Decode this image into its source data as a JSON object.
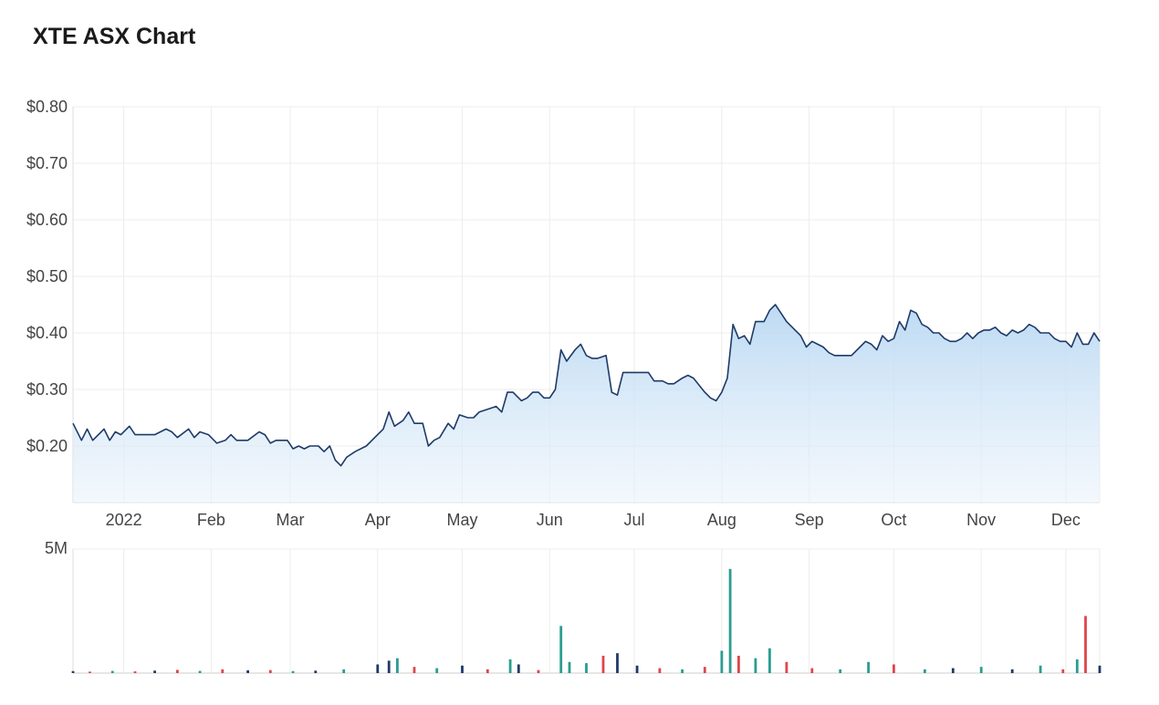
{
  "page": {
    "title": "XTE ASX Chart"
  },
  "chart_data": {
    "type": "area",
    "title": "XTE ASX Chart",
    "ylim": [
      0.1,
      0.8
    ],
    "y_ticks": [
      "$0.80",
      "$0.70",
      "$0.60",
      "$0.50",
      "$0.40",
      "$0.30",
      "$0.20"
    ],
    "y_tick_values": [
      0.8,
      0.7,
      0.6,
      0.5,
      0.4,
      0.3,
      0.2
    ],
    "x_ticks": [
      "2022",
      "Feb",
      "Mar",
      "Apr",
      "May",
      "Jun",
      "Jul",
      "Aug",
      "Sep",
      "Oct",
      "Nov",
      "Dec"
    ],
    "x_tick_dates": [
      "2022-01-01",
      "2022-02-01",
      "2022-03-01",
      "2022-04-01",
      "2022-05-01",
      "2022-06-01",
      "2022-07-01",
      "2022-08-01",
      "2022-09-01",
      "2022-10-01",
      "2022-11-01",
      "2022-12-01"
    ],
    "x_range": [
      "2021-12-14",
      "2022-12-13"
    ],
    "grid": true,
    "line_color": "#1f3a68",
    "fill_color": "#b9d8f2",
    "price": [
      [
        "2021-12-14",
        0.24
      ],
      [
        "2021-12-17",
        0.21
      ],
      [
        "2021-12-19",
        0.23
      ],
      [
        "2021-12-21",
        0.21
      ],
      [
        "2021-12-25",
        0.23
      ],
      [
        "2021-12-27",
        0.21
      ],
      [
        "2021-12-29",
        0.225
      ],
      [
        "2021-12-31",
        0.22
      ],
      [
        "2022-01-03",
        0.235
      ],
      [
        "2022-01-05",
        0.22
      ],
      [
        "2022-01-08",
        0.22
      ],
      [
        "2022-01-12",
        0.22
      ],
      [
        "2022-01-16",
        0.23
      ],
      [
        "2022-01-18",
        0.225
      ],
      [
        "2022-01-20",
        0.215
      ],
      [
        "2022-01-24",
        0.23
      ],
      [
        "2022-01-26",
        0.215
      ],
      [
        "2022-01-28",
        0.225
      ],
      [
        "2022-01-31",
        0.22
      ],
      [
        "2022-02-03",
        0.205
      ],
      [
        "2022-02-06",
        0.21
      ],
      [
        "2022-02-08",
        0.22
      ],
      [
        "2022-02-10",
        0.21
      ],
      [
        "2022-02-14",
        0.21
      ],
      [
        "2022-02-18",
        0.225
      ],
      [
        "2022-02-20",
        0.22
      ],
      [
        "2022-02-22",
        0.205
      ],
      [
        "2022-02-24",
        0.21
      ],
      [
        "2022-02-28",
        0.21
      ],
      [
        "2022-03-02",
        0.195
      ],
      [
        "2022-03-04",
        0.2
      ],
      [
        "2022-03-06",
        0.195
      ],
      [
        "2022-03-08",
        0.2
      ],
      [
        "2022-03-11",
        0.2
      ],
      [
        "2022-03-13",
        0.19
      ],
      [
        "2022-03-15",
        0.2
      ],
      [
        "2022-03-17",
        0.175
      ],
      [
        "2022-03-19",
        0.165
      ],
      [
        "2022-03-21",
        0.18
      ],
      [
        "2022-03-24",
        0.19
      ],
      [
        "2022-03-28",
        0.2
      ],
      [
        "2022-04-01",
        0.22
      ],
      [
        "2022-04-03",
        0.23
      ],
      [
        "2022-04-05",
        0.26
      ],
      [
        "2022-04-07",
        0.235
      ],
      [
        "2022-04-10",
        0.245
      ],
      [
        "2022-04-12",
        0.26
      ],
      [
        "2022-04-14",
        0.24
      ],
      [
        "2022-04-17",
        0.24
      ],
      [
        "2022-04-19",
        0.2
      ],
      [
        "2022-04-21",
        0.21
      ],
      [
        "2022-04-23",
        0.215
      ],
      [
        "2022-04-26",
        0.24
      ],
      [
        "2022-04-28",
        0.23
      ],
      [
        "2022-04-30",
        0.255
      ],
      [
        "2022-05-03",
        0.25
      ],
      [
        "2022-05-05",
        0.25
      ],
      [
        "2022-05-07",
        0.26
      ],
      [
        "2022-05-10",
        0.265
      ],
      [
        "2022-05-13",
        0.27
      ],
      [
        "2022-05-15",
        0.26
      ],
      [
        "2022-05-17",
        0.295
      ],
      [
        "2022-05-19",
        0.295
      ],
      [
        "2022-05-22",
        0.28
      ],
      [
        "2022-05-24",
        0.285
      ],
      [
        "2022-05-26",
        0.295
      ],
      [
        "2022-05-28",
        0.295
      ],
      [
        "2022-05-30",
        0.285
      ],
      [
        "2022-06-01",
        0.285
      ],
      [
        "2022-06-03",
        0.3
      ],
      [
        "2022-06-05",
        0.37
      ],
      [
        "2022-06-07",
        0.35
      ],
      [
        "2022-06-10",
        0.37
      ],
      [
        "2022-06-12",
        0.38
      ],
      [
        "2022-06-14",
        0.36
      ],
      [
        "2022-06-16",
        0.355
      ],
      [
        "2022-06-18",
        0.355
      ],
      [
        "2022-06-21",
        0.36
      ],
      [
        "2022-06-23",
        0.295
      ],
      [
        "2022-06-25",
        0.29
      ],
      [
        "2022-06-27",
        0.33
      ],
      [
        "2022-06-29",
        0.33
      ],
      [
        "2022-07-01",
        0.33
      ],
      [
        "2022-07-04",
        0.33
      ],
      [
        "2022-07-06",
        0.33
      ],
      [
        "2022-07-08",
        0.315
      ],
      [
        "2022-07-11",
        0.315
      ],
      [
        "2022-07-13",
        0.31
      ],
      [
        "2022-07-15",
        0.31
      ],
      [
        "2022-07-18",
        0.32
      ],
      [
        "2022-07-20",
        0.325
      ],
      [
        "2022-07-22",
        0.32
      ],
      [
        "2022-07-26",
        0.295
      ],
      [
        "2022-07-28",
        0.285
      ],
      [
        "2022-07-30",
        0.28
      ],
      [
        "2022-08-01",
        0.295
      ],
      [
        "2022-08-03",
        0.32
      ],
      [
        "2022-08-05",
        0.415
      ],
      [
        "2022-08-07",
        0.39
      ],
      [
        "2022-08-09",
        0.395
      ],
      [
        "2022-08-11",
        0.38
      ],
      [
        "2022-08-13",
        0.42
      ],
      [
        "2022-08-16",
        0.42
      ],
      [
        "2022-08-18",
        0.44
      ],
      [
        "2022-08-20",
        0.45
      ],
      [
        "2022-08-22",
        0.435
      ],
      [
        "2022-08-24",
        0.42
      ],
      [
        "2022-08-26",
        0.41
      ],
      [
        "2022-08-29",
        0.395
      ],
      [
        "2022-08-31",
        0.375
      ],
      [
        "2022-09-02",
        0.385
      ],
      [
        "2022-09-04",
        0.38
      ],
      [
        "2022-09-06",
        0.375
      ],
      [
        "2022-09-08",
        0.365
      ],
      [
        "2022-09-10",
        0.36
      ],
      [
        "2022-09-13",
        0.36
      ],
      [
        "2022-09-16",
        0.36
      ],
      [
        "2022-09-19",
        0.375
      ],
      [
        "2022-09-21",
        0.385
      ],
      [
        "2022-09-23",
        0.38
      ],
      [
        "2022-09-25",
        0.37
      ],
      [
        "2022-09-27",
        0.395
      ],
      [
        "2022-09-29",
        0.385
      ],
      [
        "2022-10-01",
        0.39
      ],
      [
        "2022-10-03",
        0.42
      ],
      [
        "2022-10-05",
        0.405
      ],
      [
        "2022-10-07",
        0.44
      ],
      [
        "2022-10-09",
        0.435
      ],
      [
        "2022-10-11",
        0.415
      ],
      [
        "2022-10-13",
        0.41
      ],
      [
        "2022-10-15",
        0.4
      ],
      [
        "2022-10-17",
        0.4
      ],
      [
        "2022-10-19",
        0.39
      ],
      [
        "2022-10-21",
        0.385
      ],
      [
        "2022-10-23",
        0.385
      ],
      [
        "2022-10-25",
        0.39
      ],
      [
        "2022-10-27",
        0.4
      ],
      [
        "2022-10-29",
        0.39
      ],
      [
        "2022-10-31",
        0.4
      ],
      [
        "2022-11-02",
        0.405
      ],
      [
        "2022-11-04",
        0.405
      ],
      [
        "2022-11-06",
        0.41
      ],
      [
        "2022-11-08",
        0.4
      ],
      [
        "2022-11-10",
        0.395
      ],
      [
        "2022-11-12",
        0.405
      ],
      [
        "2022-11-14",
        0.4
      ],
      [
        "2022-11-16",
        0.405
      ],
      [
        "2022-11-18",
        0.415
      ],
      [
        "2022-11-20",
        0.41
      ],
      [
        "2022-11-22",
        0.4
      ],
      [
        "2022-11-25",
        0.4
      ],
      [
        "2022-11-27",
        0.39
      ],
      [
        "2022-11-29",
        0.385
      ],
      [
        "2022-12-01",
        0.385
      ],
      [
        "2022-12-03",
        0.375
      ],
      [
        "2022-12-05",
        0.4
      ],
      [
        "2022-12-07",
        0.38
      ],
      [
        "2022-12-09",
        0.38
      ],
      [
        "2022-12-11",
        0.4
      ],
      [
        "2022-12-13",
        0.385
      ]
    ],
    "volume_label": "5M",
    "volume_max": 5000000,
    "volume_colors": {
      "up": "#2a9d8f",
      "down": "#e0454a",
      "flat": "#1f3a68"
    },
    "volume_note": "",
    "volume": [
      [
        "2021-12-14",
        80000,
        "flat"
      ],
      [
        "2021-12-20",
        60000,
        "down"
      ],
      [
        "2021-12-28",
        90000,
        "up"
      ],
      [
        "2022-01-05",
        70000,
        "down"
      ],
      [
        "2022-01-12",
        100000,
        "flat"
      ],
      [
        "2022-01-20",
        130000,
        "down"
      ],
      [
        "2022-01-28",
        90000,
        "up"
      ],
      [
        "2022-02-05",
        150000,
        "down"
      ],
      [
        "2022-02-14",
        110000,
        "flat"
      ],
      [
        "2022-02-22",
        120000,
        "down"
      ],
      [
        "2022-03-02",
        80000,
        "up"
      ],
      [
        "2022-03-10",
        100000,
        "flat"
      ],
      [
        "2022-03-20",
        150000,
        "up"
      ],
      [
        "2022-04-01",
        350000,
        "flat"
      ],
      [
        "2022-04-05",
        500000,
        "flat"
      ],
      [
        "2022-04-08",
        600000,
        "up"
      ],
      [
        "2022-04-14",
        250000,
        "down"
      ],
      [
        "2022-04-22",
        200000,
        "up"
      ],
      [
        "2022-05-01",
        300000,
        "flat"
      ],
      [
        "2022-05-10",
        150000,
        "down"
      ],
      [
        "2022-05-18",
        550000,
        "up"
      ],
      [
        "2022-05-21",
        350000,
        "flat"
      ],
      [
        "2022-05-28",
        120000,
        "down"
      ],
      [
        "2022-06-05",
        1900000,
        "up"
      ],
      [
        "2022-06-08",
        450000,
        "up"
      ],
      [
        "2022-06-14",
        400000,
        "up"
      ],
      [
        "2022-06-20",
        700000,
        "down"
      ],
      [
        "2022-06-25",
        800000,
        "flat"
      ],
      [
        "2022-07-02",
        300000,
        "flat"
      ],
      [
        "2022-07-10",
        200000,
        "down"
      ],
      [
        "2022-07-18",
        150000,
        "up"
      ],
      [
        "2022-07-26",
        250000,
        "down"
      ],
      [
        "2022-08-01",
        900000,
        "up"
      ],
      [
        "2022-08-04",
        4200000,
        "up"
      ],
      [
        "2022-08-07",
        700000,
        "down"
      ],
      [
        "2022-08-13",
        600000,
        "up"
      ],
      [
        "2022-08-18",
        1000000,
        "up"
      ],
      [
        "2022-08-24",
        450000,
        "down"
      ],
      [
        "2022-09-02",
        200000,
        "down"
      ],
      [
        "2022-09-12",
        150000,
        "up"
      ],
      [
        "2022-09-22",
        450000,
        "up"
      ],
      [
        "2022-10-01",
        350000,
        "down"
      ],
      [
        "2022-10-12",
        150000,
        "up"
      ],
      [
        "2022-10-22",
        200000,
        "flat"
      ],
      [
        "2022-11-01",
        250000,
        "up"
      ],
      [
        "2022-11-12",
        150000,
        "flat"
      ],
      [
        "2022-11-22",
        300000,
        "up"
      ],
      [
        "2022-11-30",
        150000,
        "down"
      ],
      [
        "2022-12-05",
        550000,
        "up"
      ],
      [
        "2022-12-08",
        2300000,
        "down"
      ],
      [
        "2022-12-13",
        300000,
        "flat"
      ]
    ]
  }
}
